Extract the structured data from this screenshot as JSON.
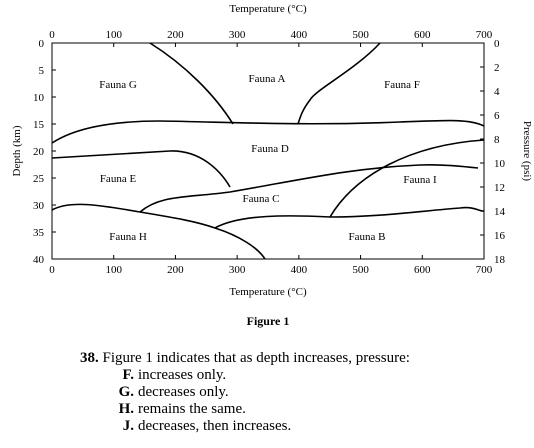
{
  "figure": {
    "x_label": "Temperature (°C)",
    "y_label": "Depth (km)",
    "y2_label": "Pressure (psi)",
    "xlim": [
      0,
      700
    ],
    "ylim": [
      0,
      40
    ],
    "y2lim": [
      0,
      18
    ],
    "xticks": [
      0,
      100,
      200,
      300,
      400,
      500,
      600,
      700
    ],
    "yticks": [
      0,
      5,
      10,
      15,
      20,
      25,
      30,
      35,
      40
    ],
    "y2ticks": [
      0,
      2,
      4,
      6,
      8,
      10,
      12,
      14,
      16,
      18
    ],
    "regions": [
      {
        "label": "Fauna G"
      },
      {
        "label": "Fauna A"
      },
      {
        "label": "Fauna F"
      },
      {
        "label": "Fauna D"
      },
      {
        "label": "Fauna E"
      },
      {
        "label": "Fauna I"
      },
      {
        "label": "Fauna C"
      },
      {
        "label": "Fauna H"
      },
      {
        "label": "Fauna B"
      }
    ],
    "caption": "Figure 1"
  },
  "question": {
    "number": "38.",
    "text": "Figure 1 indicates that as depth increases, pressure:",
    "options": [
      {
        "letter": "F.",
        "text": "increases only."
      },
      {
        "letter": "G.",
        "text": "decreases only."
      },
      {
        "letter": "H.",
        "text": "remains the same."
      },
      {
        "letter": "J.",
        "text": "decreases, then increases."
      }
    ]
  }
}
